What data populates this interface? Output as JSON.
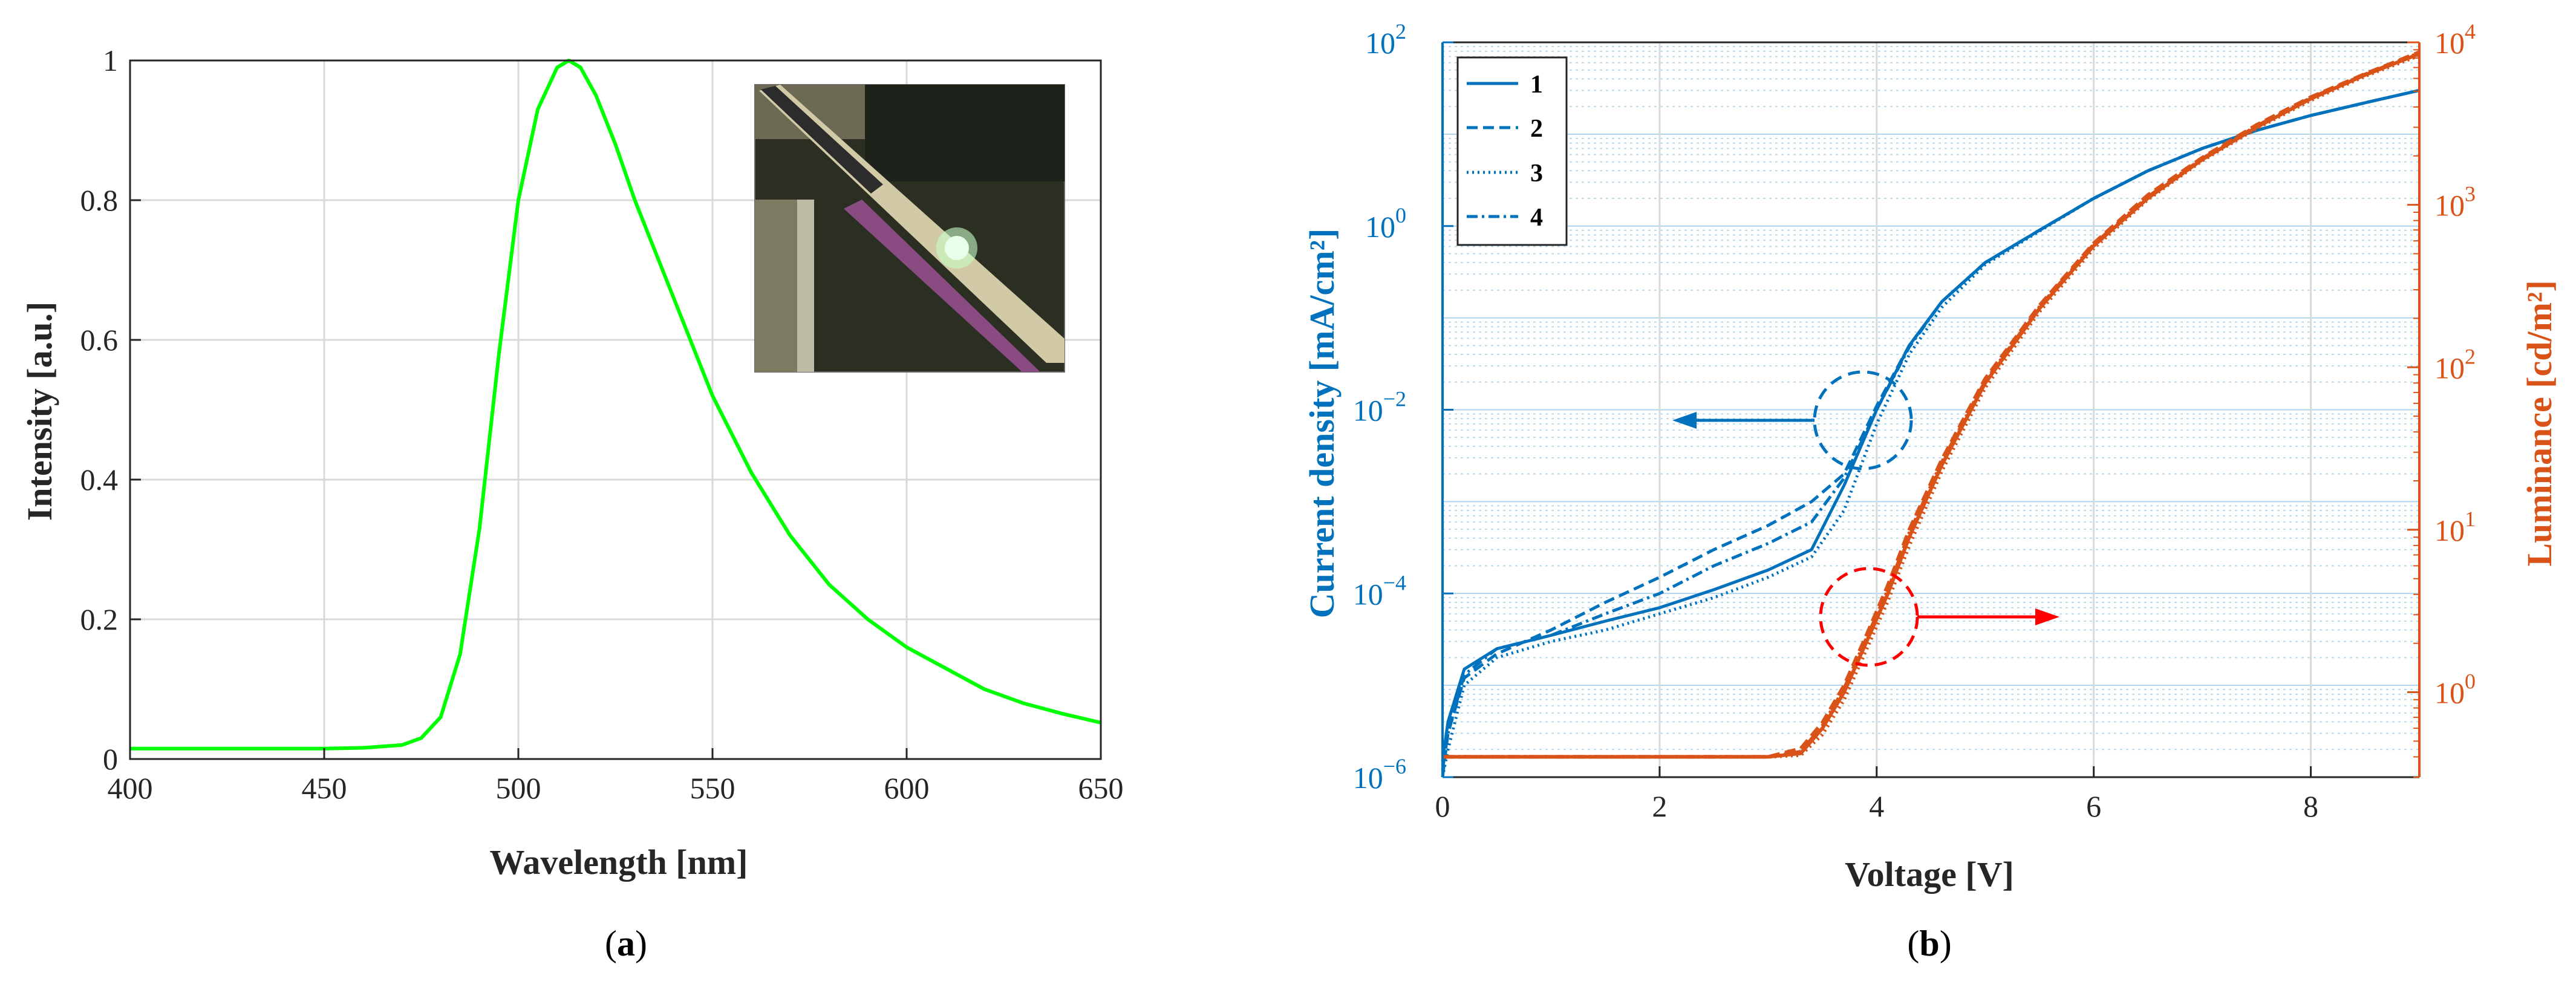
{
  "colors": {
    "green": "#00FF00",
    "blue": "#0072BD",
    "orange": "#D95319",
    "red": "#FF0000",
    "grid": "#D9D9D9",
    "axis": "#262626"
  },
  "panel_a": {
    "caption_open": "(",
    "caption_letter": "a",
    "caption_close": ")"
  },
  "panel_b": {
    "caption_open": "(",
    "caption_letter": "b",
    "caption_close": ")"
  },
  "chart_data": [
    {
      "type": "line",
      "xlabel": "Wavelength [nm]",
      "ylabel": "Intensity [a.u.]",
      "xlim": [
        400,
        650
      ],
      "ylim": [
        0,
        1
      ],
      "xticks": [
        "400",
        "450",
        "500",
        "550",
        "600",
        "650"
      ],
      "yticks": [
        "0",
        "0.2",
        "0.4",
        "0.6",
        "0.8",
        "1"
      ],
      "grid": true,
      "inset": "photograph of green-emitting device",
      "series": [
        {
          "x": [
            400,
            450,
            460,
            470,
            475,
            480,
            485,
            490,
            495,
            500,
            505,
            510,
            513,
            516,
            520,
            525,
            530,
            540,
            550,
            560,
            570,
            580,
            590,
            600,
            610,
            620,
            630,
            640,
            650
          ],
          "values": [
            0.015,
            0.015,
            0.016,
            0.02,
            0.03,
            0.06,
            0.15,
            0.33,
            0.58,
            0.8,
            0.93,
            0.99,
            1.0,
            0.99,
            0.95,
            0.88,
            0.8,
            0.66,
            0.52,
            0.41,
            0.32,
            0.25,
            0.2,
            0.16,
            0.13,
            0.1,
            0.08,
            0.065,
            0.052
          ]
        }
      ]
    },
    {
      "type": "line",
      "xlabel": "Voltage [V]",
      "ylabel": "Current density [mA/cm²]",
      "ylabel_right": "Luminance [cd/m²]",
      "xlim": [
        0,
        9
      ],
      "ylim_left": [
        1e-06,
        100
      ],
      "ylim_right": [
        0.3,
        10000
      ],
      "yscale": "log",
      "xticks": [
        "0",
        "2",
        "4",
        "6",
        "8"
      ],
      "yticks_left": [
        {
          "base": "10",
          "exp": "−6"
        },
        {
          "base": "10",
          "exp": "−4"
        },
        {
          "base": "10",
          "exp": "−2"
        },
        {
          "base": "10",
          "exp": "0"
        },
        {
          "base": "10",
          "exp": "2"
        }
      ],
      "yticks_right": [
        {
          "base": "10",
          "exp": "0"
        },
        {
          "base": "10",
          "exp": "1"
        },
        {
          "base": "10",
          "exp": "2"
        },
        {
          "base": "10",
          "exp": "3"
        },
        {
          "base": "10",
          "exp": "4"
        }
      ],
      "grid": true,
      "legend_position": "top-left",
      "legend": [
        "1",
        "2",
        "3",
        "4"
      ],
      "annotations": [
        "arrow left from blue circle at ~4 V (current density axis)",
        "arrow right from red circle at ~4 V (luminance axis)"
      ],
      "current_density_series": [
        {
          "name": "1",
          "x": [
            0,
            0.05,
            0.2,
            0.5,
            1.0,
            1.5,
            2.0,
            2.5,
            3.0,
            3.4,
            3.7,
            4.0,
            4.3,
            4.6,
            5.0,
            5.5,
            6.0,
            6.5,
            7.0,
            7.5,
            8.0,
            8.5,
            9.0
          ],
          "values": [
            1.5e-06,
            4e-06,
            1.5e-05,
            2.5e-05,
            3.5e-05,
            5e-05,
            7e-05,
            0.00011,
            0.00018,
            0.0003,
            0.0015,
            0.01,
            0.05,
            0.15,
            0.4,
            0.9,
            2,
            4,
            7,
            11,
            16,
            22,
            30
          ]
        },
        {
          "name": "2",
          "x": [
            0,
            0.05,
            0.2,
            0.5,
            1.0,
            1.5,
            2.0,
            2.5,
            3.0,
            3.4,
            3.7,
            4.0,
            4.3,
            4.6,
            5.0,
            5.5,
            6.0,
            6.5,
            7.0,
            7.5,
            8.0,
            8.5,
            9.0
          ],
          "values": [
            1e-06,
            3e-06,
            1.2e-05,
            2.2e-05,
            4e-05,
            8e-05,
            0.00015,
            0.0003,
            0.00055,
            0.001,
            0.002,
            0.011,
            0.05,
            0.15,
            0.4,
            0.9,
            2,
            4,
            7,
            11,
            16,
            22,
            30
          ]
        },
        {
          "name": "3",
          "x": [
            0,
            0.05,
            0.2,
            0.5,
            1.0,
            1.5,
            2.0,
            2.5,
            3.0,
            3.4,
            3.7,
            4.0,
            4.3,
            4.6,
            5.0,
            5.5,
            6.0,
            6.5,
            7.0,
            7.5,
            8.0,
            8.5,
            9.0
          ],
          "values": [
            1e-06,
            2e-06,
            1e-05,
            2e-05,
            3e-05,
            4e-05,
            6e-05,
            9e-05,
            0.00015,
            0.00025,
            0.0008,
            0.007,
            0.04,
            0.13,
            0.38,
            0.88,
            2,
            4,
            7,
            11,
            16,
            22,
            30
          ]
        },
        {
          "name": "4",
          "x": [
            0,
            0.05,
            0.2,
            0.5,
            1.0,
            1.5,
            2.0,
            2.5,
            3.0,
            3.4,
            3.7,
            4.0,
            4.3,
            4.6,
            5.0,
            5.5,
            6.0,
            6.5,
            7.0,
            7.5,
            8.0,
            8.5,
            9.0
          ],
          "values": [
            1.2e-06,
            3e-06,
            1.3e-05,
            2.5e-05,
            3.5e-05,
            6e-05,
            0.0001,
            0.0002,
            0.00035,
            0.0006,
            0.0018,
            0.01,
            0.048,
            0.15,
            0.4,
            0.9,
            2,
            4,
            7,
            11,
            16,
            22,
            30
          ]
        }
      ],
      "luminance_series": [
        {
          "name": "1",
          "x": [
            0,
            1,
            2,
            3,
            3.3,
            3.5,
            3.7,
            3.9,
            4.1,
            4.3,
            4.6,
            5.0,
            5.5,
            6.0,
            6.5,
            7.0,
            7.5,
            8.0,
            8.5,
            9.0
          ],
          "values": [
            0.4,
            0.4,
            0.4,
            0.4,
            0.42,
            0.6,
            1.0,
            2.0,
            4.0,
            9,
            25,
            80,
            230,
            560,
            1100,
            1900,
            3000,
            4500,
            6300,
            8500
          ]
        },
        {
          "name": "2",
          "x": [
            0,
            1,
            2,
            3,
            3.3,
            3.5,
            3.7,
            3.9,
            4.1,
            4.3,
            4.6,
            5.0,
            5.5,
            6.0,
            6.5,
            7.0,
            7.5,
            8.0,
            8.5,
            9.0
          ],
          "values": [
            0.4,
            0.4,
            0.4,
            0.4,
            0.45,
            0.65,
            1.1,
            2.2,
            4.5,
            10,
            27,
            85,
            240,
            580,
            1150,
            1950,
            3100,
            4600,
            6400,
            8700
          ]
        },
        {
          "name": "3",
          "x": [
            0,
            1,
            2,
            3,
            3.3,
            3.5,
            3.7,
            3.9,
            4.1,
            4.3,
            4.6,
            5.0,
            5.5,
            6.0,
            6.5,
            7.0,
            7.5,
            8.0,
            8.5,
            9.0
          ],
          "values": [
            0.4,
            0.4,
            0.4,
            0.4,
            0.41,
            0.55,
            0.9,
            1.8,
            3.6,
            8,
            23,
            75,
            220,
            540,
            1080,
            1870,
            2950,
            4400,
            6200,
            8300
          ]
        },
        {
          "name": "4",
          "x": [
            0,
            1,
            2,
            3,
            3.3,
            3.5,
            3.7,
            3.9,
            4.1,
            4.3,
            4.6,
            5.0,
            5.5,
            6.0,
            6.5,
            7.0,
            7.5,
            8.0,
            8.5,
            9.0
          ],
          "values": [
            0.4,
            0.4,
            0.4,
            0.4,
            0.43,
            0.62,
            1.05,
            2.1,
            4.2,
            9.5,
            26,
            82,
            235,
            570,
            1120,
            1920,
            3050,
            4550,
            6350,
            8600
          ]
        }
      ]
    }
  ]
}
